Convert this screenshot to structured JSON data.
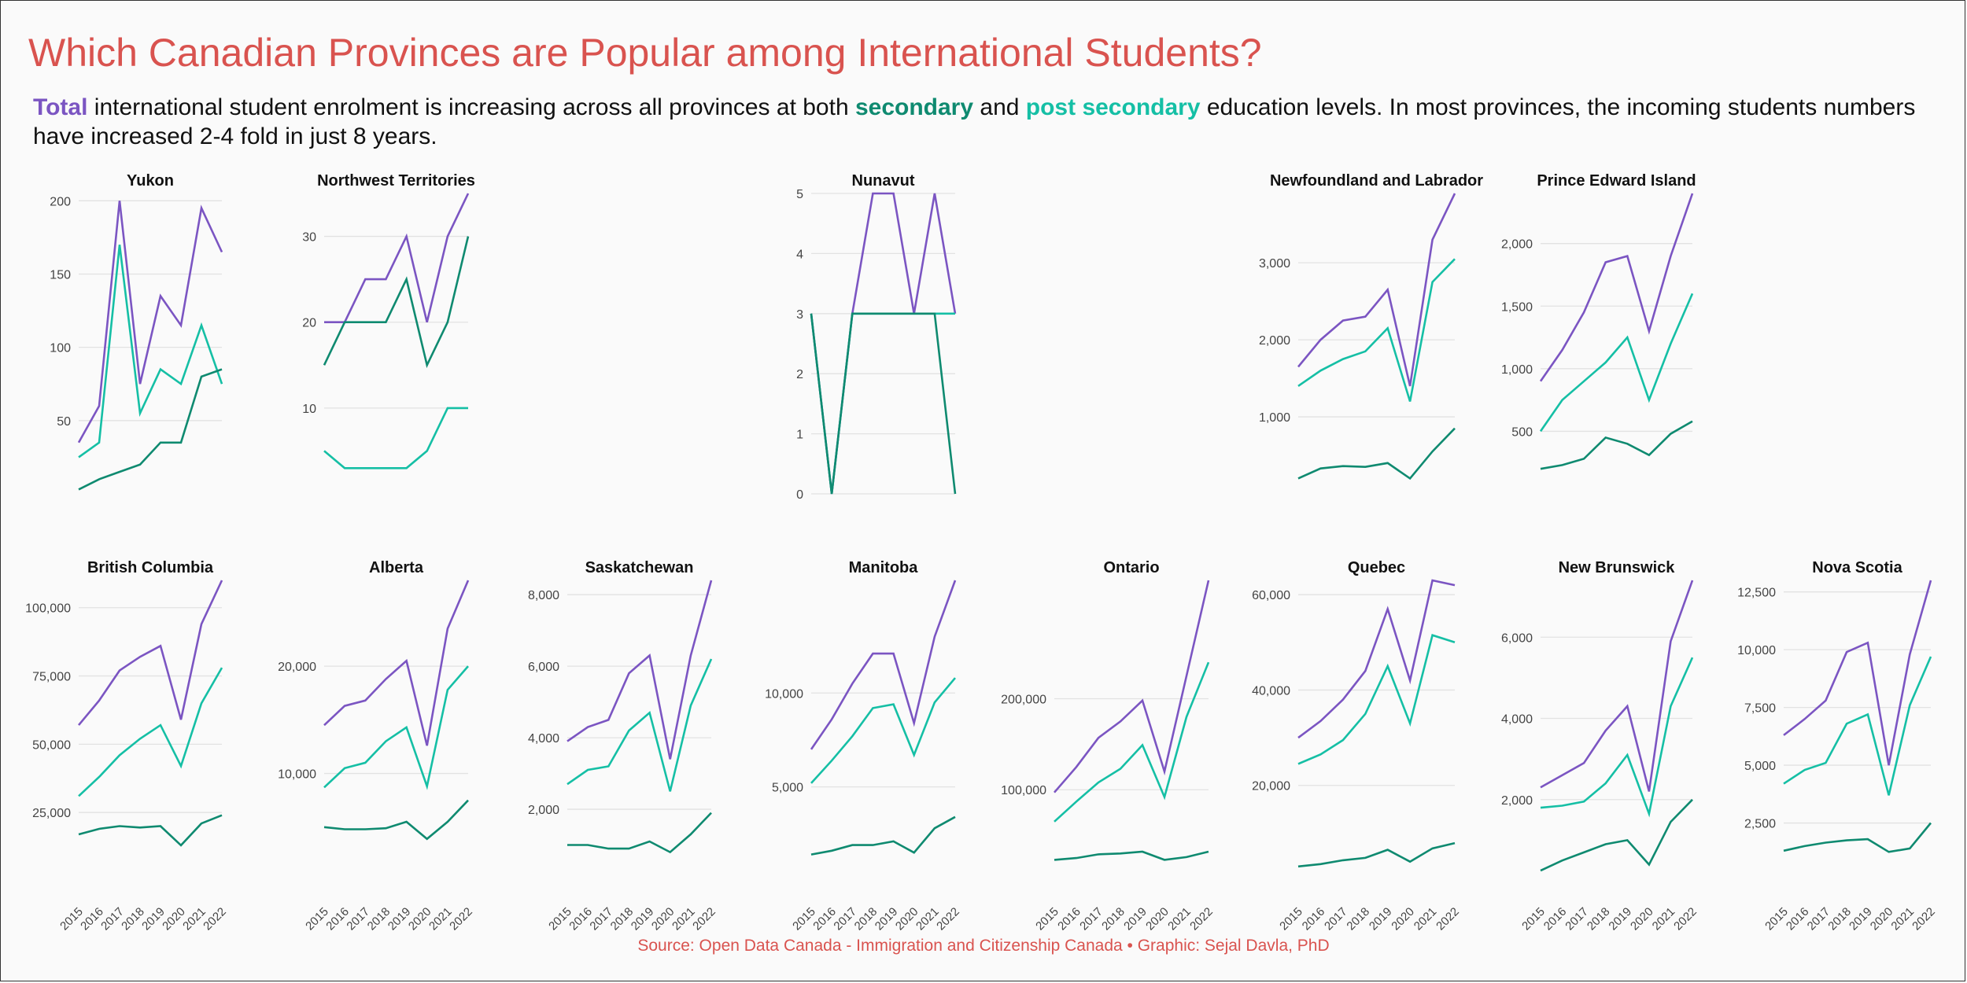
{
  "title": "Which Canadian Provinces are Popular among International Students?",
  "subtitle": {
    "total_word": "Total",
    "part1": " international student enrolment is increasing across all provinces at both ",
    "secondary_word": "secondary",
    "part2": " and ",
    "post_word": "post secondary",
    "part3": " education levels. In most provinces, the incoming students numbers have increased 2-4 fold in just 8 years."
  },
  "source": "Source: Open Data Canada - Immigration and Citizenship Canada • Graphic: Sejal Davla, PhD",
  "colors": {
    "total": "#7b55c2",
    "secondary": "#0f8a70",
    "post_secondary": "#15bfa5",
    "grid": "#e2e2e2",
    "tick_text": "#444444",
    "panel_title": "#111111"
  },
  "chart_data": [
    {
      "type": "line",
      "title": "Yukon",
      "x": [
        "2015",
        "2016",
        "2017",
        "2018",
        "2019",
        "2020",
        "2021",
        "2022"
      ],
      "ylim": [
        0,
        205
      ],
      "yticks": [
        50,
        100,
        150,
        200
      ],
      "ytick_labels": [
        "50",
        "100",
        "150",
        "200"
      ],
      "show_xticks": false,
      "series": [
        {
          "key": "total",
          "values": [
            35,
            60,
            200,
            75,
            135,
            115,
            195,
            165
          ]
        },
        {
          "key": "post_secondary",
          "values": [
            25,
            35,
            170,
            55,
            85,
            75,
            115,
            75
          ]
        },
        {
          "key": "secondary",
          "values": [
            3,
            10,
            15,
            20,
            35,
            35,
            80,
            85
          ]
        }
      ]
    },
    {
      "type": "line",
      "title": "Northwest Territories",
      "x": [
        "2015",
        "2016",
        "2017",
        "2018",
        "2019",
        "2020",
        "2021",
        "2022"
      ],
      "ylim": [
        0,
        35
      ],
      "yticks": [
        10,
        20,
        30
      ],
      "ytick_labels": [
        "10",
        "20",
        "30"
      ],
      "show_xticks": false,
      "series": [
        {
          "key": "total",
          "values": [
            20,
            20,
            25,
            25,
            30,
            20,
            30,
            35
          ]
        },
        {
          "key": "post_secondary",
          "values": [
            5,
            3,
            3,
            3,
            3,
            5,
            10,
            10
          ]
        },
        {
          "key": "secondary",
          "values": [
            15,
            20,
            20,
            20,
            25,
            15,
            20,
            30
          ]
        }
      ]
    },
    {
      "type": "line",
      "title": "Nunavut",
      "x": [
        "2015",
        "2016",
        "2017",
        "2018",
        "2019",
        "2020",
        "2021",
        "2022"
      ],
      "ylim": [
        0,
        5
      ],
      "yticks": [
        0,
        1,
        2,
        3,
        4,
        5
      ],
      "ytick_labels": [
        "0",
        "1",
        "2",
        "3",
        "4",
        "5"
      ],
      "show_xticks": false,
      "series": [
        {
          "key": "total",
          "values": [
            3,
            0,
            3,
            5,
            5,
            3,
            5,
            3
          ]
        },
        {
          "key": "post_secondary",
          "values": [
            3,
            0,
            3,
            3,
            3,
            3,
            3,
            3
          ]
        },
        {
          "key": "secondary",
          "values": [
            3,
            0,
            3,
            3,
            3,
            3,
            3,
            0
          ]
        }
      ]
    },
    {
      "type": "line",
      "title": "Newfoundland and Labrador",
      "x": [
        "2015",
        "2016",
        "2017",
        "2018",
        "2019",
        "2020",
        "2021",
        "2022"
      ],
      "ylim": [
        0,
        3900
      ],
      "yticks": [
        1000,
        2000,
        3000
      ],
      "ytick_labels": [
        "1,000",
        "2,000",
        "3,000"
      ],
      "show_xticks": false,
      "series": [
        {
          "key": "total",
          "values": [
            1650,
            2000,
            2250,
            2300,
            2650,
            1400,
            3300,
            3900
          ]
        },
        {
          "key": "post_secondary",
          "values": [
            1400,
            1600,
            1750,
            1850,
            2150,
            1200,
            2750,
            3050
          ]
        },
        {
          "key": "secondary",
          "values": [
            200,
            330,
            360,
            350,
            400,
            200,
            550,
            850
          ]
        }
      ]
    },
    {
      "type": "line",
      "title": "Prince Edward Island",
      "x": [
        "2015",
        "2016",
        "2017",
        "2018",
        "2019",
        "2020",
        "2021",
        "2022"
      ],
      "ylim": [
        0,
        2400
      ],
      "yticks": [
        500,
        1000,
        1500,
        2000
      ],
      "ytick_labels": [
        "500",
        "1,000",
        "1,500",
        "2,000"
      ],
      "show_xticks": false,
      "series": [
        {
          "key": "total",
          "values": [
            900,
            1150,
            1450,
            1850,
            1900,
            1300,
            1900,
            2400
          ]
        },
        {
          "key": "post_secondary",
          "values": [
            500,
            750,
            900,
            1050,
            1250,
            750,
            1200,
            1600
          ]
        },
        {
          "key": "secondary",
          "values": [
            200,
            230,
            280,
            450,
            400,
            310,
            480,
            580
          ]
        }
      ]
    },
    {
      "type": "line",
      "title": "British Columbia",
      "x": [
        "2015",
        "2016",
        "2017",
        "2018",
        "2019",
        "2020",
        "2021",
        "2022"
      ],
      "ylim": [
        0,
        110000
      ],
      "yticks": [
        25000,
        50000,
        75000,
        100000
      ],
      "ytick_labels": [
        "25,000",
        "50,000",
        "75,000",
        "100,000"
      ],
      "show_xticks": true,
      "series": [
        {
          "key": "total",
          "values": [
            57000,
            66000,
            77000,
            82000,
            86000,
            59000,
            94000,
            110000
          ]
        },
        {
          "key": "post_secondary",
          "values": [
            31000,
            38000,
            46000,
            52000,
            57000,
            42000,
            65000,
            78000
          ]
        },
        {
          "key": "secondary",
          "values": [
            17000,
            19000,
            20000,
            19500,
            20000,
            13000,
            21000,
            24000
          ]
        }
      ]
    },
    {
      "type": "line",
      "title": "Alberta",
      "x": [
        "2015",
        "2016",
        "2017",
        "2018",
        "2019",
        "2020",
        "2021",
        "2022"
      ],
      "ylim": [
        0,
        28000
      ],
      "yticks": [
        10000,
        20000
      ],
      "ytick_labels": [
        "10,000",
        "20,000"
      ],
      "show_xticks": true,
      "series": [
        {
          "key": "total",
          "values": [
            14500,
            16300,
            16800,
            18800,
            20500,
            12600,
            23500,
            28000
          ]
        },
        {
          "key": "post_secondary",
          "values": [
            8700,
            10500,
            11000,
            13000,
            14300,
            8800,
            17800,
            20000
          ]
        },
        {
          "key": "secondary",
          "values": [
            5000,
            4800,
            4800,
            4900,
            5500,
            3900,
            5500,
            7500
          ]
        }
      ]
    },
    {
      "type": "line",
      "title": "Saskatchewan",
      "x": [
        "2015",
        "2016",
        "2017",
        "2018",
        "2019",
        "2020",
        "2021",
        "2022"
      ],
      "ylim": [
        0,
        8400
      ],
      "yticks": [
        2000,
        4000,
        6000,
        8000
      ],
      "ytick_labels": [
        "2,000",
        "4,000",
        "6,000",
        "8,000"
      ],
      "show_xticks": true,
      "series": [
        {
          "key": "total",
          "values": [
            3900,
            4300,
            4500,
            5800,
            6300,
            3400,
            6300,
            8400
          ]
        },
        {
          "key": "post_secondary",
          "values": [
            2700,
            3100,
            3200,
            4200,
            4700,
            2500,
            4900,
            6200
          ]
        },
        {
          "key": "secondary",
          "values": [
            1000,
            1000,
            900,
            900,
            1100,
            800,
            1300,
            1900
          ]
        }
      ]
    },
    {
      "type": "line",
      "title": "Manitoba",
      "x": [
        "2015",
        "2016",
        "2017",
        "2018",
        "2019",
        "2020",
        "2021",
        "2022"
      ],
      "ylim": [
        0,
        16000
      ],
      "yticks": [
        5000,
        10000
      ],
      "ytick_labels": [
        "5,000",
        "10,000"
      ],
      "show_xticks": true,
      "series": [
        {
          "key": "total",
          "values": [
            7000,
            8600,
            10500,
            12100,
            12100,
            8400,
            13000,
            16000
          ]
        },
        {
          "key": "post_secondary",
          "values": [
            5200,
            6400,
            7700,
            9200,
            9400,
            6700,
            9500,
            10800
          ]
        },
        {
          "key": "secondary",
          "values": [
            1400,
            1600,
            1900,
            1900,
            2100,
            1500,
            2800,
            3400
          ]
        }
      ]
    },
    {
      "type": "line",
      "title": "Ontario",
      "x": [
        "2015",
        "2016",
        "2017",
        "2018",
        "2019",
        "2020",
        "2021",
        "2022"
      ],
      "ylim": [
        0,
        330000
      ],
      "yticks": [
        100000,
        200000
      ],
      "ytick_labels": [
        "100,000",
        "200,000"
      ],
      "show_xticks": true,
      "series": [
        {
          "key": "total",
          "values": [
            97000,
            125000,
            157000,
            175000,
            198000,
            120000,
            225000,
            330000
          ]
        },
        {
          "key": "post_secondary",
          "values": [
            65000,
            87000,
            108000,
            123000,
            149000,
            92000,
            180000,
            240000
          ]
        },
        {
          "key": "secondary",
          "values": [
            23000,
            25000,
            29000,
            30000,
            32000,
            23000,
            26000,
            32000
          ]
        }
      ]
    },
    {
      "type": "line",
      "title": "Quebec",
      "x": [
        "2015",
        "2016",
        "2017",
        "2018",
        "2019",
        "2020",
        "2021",
        "2022"
      ],
      "ylim": [
        0,
        63000
      ],
      "yticks": [
        20000,
        40000,
        60000
      ],
      "ytick_labels": [
        "20,000",
        "40,000",
        "60,000"
      ],
      "show_xticks": true,
      "series": [
        {
          "key": "total",
          "values": [
            30000,
            33500,
            38000,
            44000,
            57000,
            42000,
            63000,
            62000
          ]
        },
        {
          "key": "post_secondary",
          "values": [
            24500,
            26500,
            29500,
            35000,
            45000,
            33000,
            51500,
            50000
          ]
        },
        {
          "key": "secondary",
          "values": [
            3000,
            3500,
            4300,
            4800,
            6500,
            4000,
            6800,
            7900
          ]
        }
      ]
    },
    {
      "type": "line",
      "title": "New Brunswick",
      "x": [
        "2015",
        "2016",
        "2017",
        "2018",
        "2019",
        "2020",
        "2021",
        "2022"
      ],
      "ylim": [
        0,
        7400
      ],
      "yticks": [
        2000,
        4000,
        6000
      ],
      "ytick_labels": [
        "2,000",
        "4,000",
        "6,000"
      ],
      "show_xticks": true,
      "series": [
        {
          "key": "total",
          "values": [
            2300,
            2600,
            2900,
            3700,
            4300,
            2200,
            5900,
            7400
          ]
        },
        {
          "key": "post_secondary",
          "values": [
            1800,
            1850,
            1950,
            2400,
            3100,
            1650,
            4300,
            5500
          ]
        },
        {
          "key": "secondary",
          "values": [
            250,
            500,
            700,
            900,
            1000,
            400,
            1450,
            2000
          ]
        }
      ]
    },
    {
      "type": "line",
      "title": "Nova Scotia",
      "x": [
        "2015",
        "2016",
        "2017",
        "2018",
        "2019",
        "2020",
        "2021",
        "2022"
      ],
      "ylim": [
        0,
        13000
      ],
      "yticks": [
        2500,
        5000,
        7500,
        10000,
        12500
      ],
      "ytick_labels": [
        "2,500",
        "5,000",
        "7,500",
        "10,000",
        "12,500"
      ],
      "show_xticks": true,
      "series": [
        {
          "key": "total",
          "values": [
            6300,
            7000,
            7800,
            9900,
            10300,
            5000,
            9800,
            13000
          ]
        },
        {
          "key": "post_secondary",
          "values": [
            4200,
            4800,
            5100,
            6800,
            7200,
            3700,
            7600,
            9700
          ]
        },
        {
          "key": "secondary",
          "values": [
            1300,
            1500,
            1650,
            1750,
            1800,
            1250,
            1400,
            2500
          ]
        }
      ]
    }
  ]
}
